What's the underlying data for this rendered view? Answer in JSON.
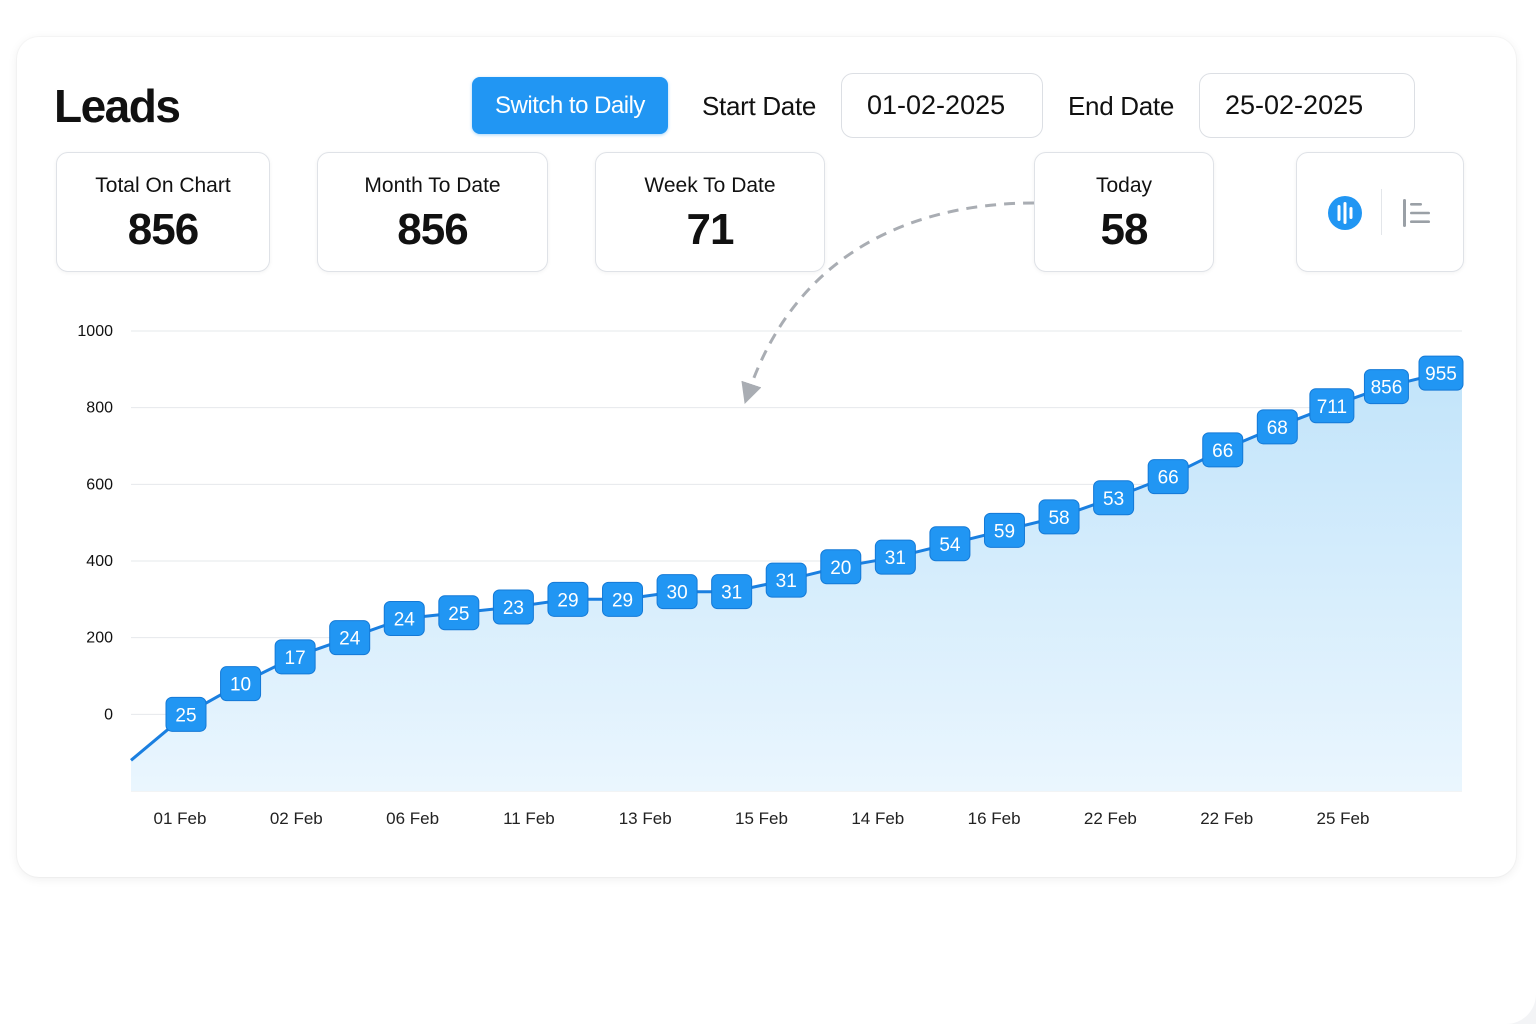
{
  "header": {
    "title": "Leads",
    "switch_label": "Switch to Daily",
    "start_date_label": "Start Date",
    "start_date_value": "01-02-2025",
    "end_date_label": "End Date",
    "end_date_value": "25-02-2025"
  },
  "stats": {
    "total_on_chart": {
      "label": "Total On Chart",
      "value": "856"
    },
    "month_to_date": {
      "label": "Month To Date",
      "value": "856"
    },
    "week_to_date": {
      "label": "Week To Date",
      "value": "71"
    },
    "today": {
      "label": "Today",
      "value": "58"
    }
  },
  "view_toggle": {
    "options": [
      "bar-chart-icon",
      "list-icon"
    ],
    "active": "bar-chart-icon"
  },
  "colors": {
    "accent": "#2196f3",
    "line": "#1a7fe0",
    "fill_top": "#c2e4fa",
    "fill_bottom": "#eaf6fe",
    "grid": "#e6e8eb",
    "annotation": "#a9adb3"
  },
  "chart_data": {
    "type": "area",
    "title": "",
    "xlabel": "",
    "ylabel": "",
    "ylim": [
      -200,
      1000
    ],
    "yticks": [
      "1000",
      "800",
      "600",
      "400",
      "200",
      "0"
    ],
    "ytick_values": [
      1000,
      800,
      600,
      400,
      200,
      0
    ],
    "xtick_labels": [
      "01 Feb",
      "02 Feb",
      "06 Feb",
      "11 Feb",
      "13 Feb",
      "15 Feb",
      "14 Feb",
      "16 Feb",
      "22 Feb",
      "22 Feb",
      "25 Feb"
    ],
    "grid": true,
    "start_value": -120,
    "series": [
      {
        "values": [
          0,
          80,
          150,
          200,
          250,
          265,
          280,
          300,
          300,
          320,
          320,
          350,
          385,
          410,
          445,
          480,
          515,
          565,
          620,
          690,
          750,
          805,
          855,
          890
        ],
        "labels": [
          "25",
          "10",
          "17",
          "24",
          "24",
          "25",
          "23",
          "29",
          "29",
          "30",
          "31",
          "31",
          "20",
          "31",
          "54",
          "59",
          "58",
          "53",
          "66",
          "66",
          "68",
          "711",
          "856",
          "955"
        ]
      }
    ]
  }
}
